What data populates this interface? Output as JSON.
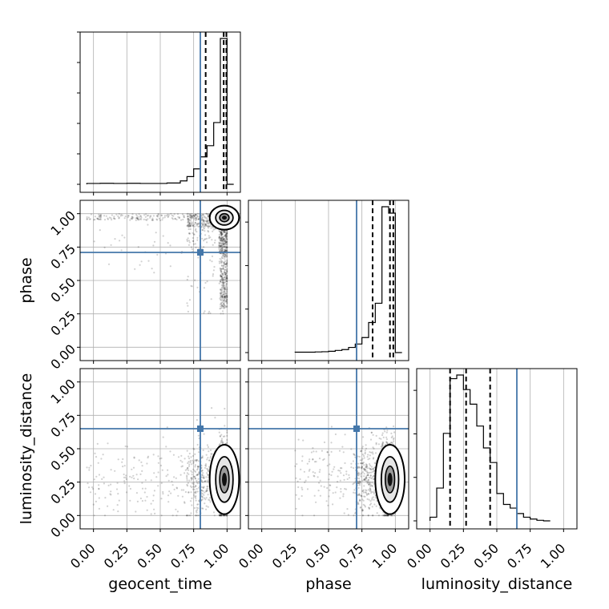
{
  "chart_data": {
    "type": "corner",
    "parameters": [
      "geocent_time",
      "phase",
      "luminosity_distance"
    ],
    "axis_range": [
      -0.1,
      1.1
    ],
    "tick_values": [
      0.0,
      0.25,
      0.5,
      0.75,
      1.0
    ],
    "tick_labels": [
      "0.00",
      "0.25",
      "0.50",
      "0.75",
      "1.00"
    ],
    "grid": true,
    "truth_color": "#4477aa",
    "truths": {
      "geocent_time": 0.8,
      "phase": 0.71,
      "luminosity_distance": 0.65
    },
    "quantiles": {
      "geocent_time": [
        0.84,
        0.975,
        0.995
      ],
      "phase": [
        0.83,
        0.96,
        0.985
      ],
      "luminosity_distance": [
        0.15,
        0.27,
        0.45
      ]
    },
    "histograms": {
      "geocent_time": {
        "edges": [
          -0.05,
          0.05,
          0.15,
          0.25,
          0.35,
          0.45,
          0.55,
          0.65,
          0.7,
          0.75,
          0.8,
          0.85,
          0.9,
          0.95,
          1.0,
          1.05
        ],
        "counts": [
          1,
          1.2,
          1,
          1.2,
          1,
          1,
          1.5,
          4,
          9,
          18,
          32,
          45,
          72,
          170,
          0
        ]
      },
      "phase": {
        "edges": [
          0.25,
          0.4,
          0.45,
          0.5,
          0.55,
          0.6,
          0.65,
          0.7,
          0.75,
          0.8,
          0.85,
          0.9,
          0.95,
          1.0,
          1.05
        ],
        "counts": [
          1,
          1.5,
          2,
          3,
          5,
          7,
          12,
          20,
          35,
          70,
          115,
          340,
          325,
          0
        ]
      },
      "luminosity_distance": {
        "edges": [
          0.0,
          0.05,
          0.1,
          0.15,
          0.2,
          0.25,
          0.3,
          0.35,
          0.4,
          0.45,
          0.5,
          0.55,
          0.6,
          0.65,
          0.7,
          0.75,
          0.8,
          0.85,
          0.9
        ],
        "counts": [
          2,
          18,
          48,
          78,
          80,
          72,
          64,
          52,
          40,
          32,
          15,
          9,
          7,
          4,
          2,
          1,
          0.3,
          0
        ]
      }
    },
    "scatter_2d": {
      "phase_vs_geocent_time": {
        "x_param": "geocent_time",
        "y_param": "phase"
      },
      "luminosity_distance_vs_geocent_time": {
        "x_param": "geocent_time",
        "y_param": "luminosity_distance"
      },
      "luminosity_distance_vs_phase": {
        "x_param": "phase",
        "y_param": "luminosity_distance"
      }
    }
  }
}
